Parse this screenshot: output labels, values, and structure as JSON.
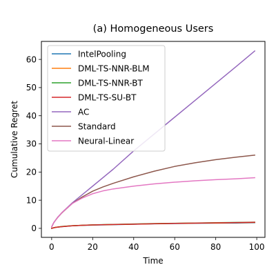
{
  "chart_data": {
    "type": "line",
    "title": "(a) Homogeneous Users",
    "xlabel": "Time",
    "ylabel": "Cumulative Regret",
    "xlim": [
      -5,
      104
    ],
    "ylim": [
      -3.2,
      66.4
    ],
    "xticks": [
      0,
      20,
      40,
      60,
      80,
      100
    ],
    "yticks": [
      0,
      10,
      20,
      30,
      40,
      50,
      60
    ],
    "grid": false,
    "legend_position": "upper-left",
    "series": [
      {
        "name": "IntelPooling",
        "color": "#1f77b4",
        "x": [
          0,
          1,
          2,
          5,
          10,
          15,
          20,
          30,
          40,
          50,
          60,
          70,
          80,
          90,
          99
        ],
        "y": [
          0.0,
          0.2,
          0.35,
          0.6,
          0.9,
          1.05,
          1.15,
          1.3,
          1.45,
          1.6,
          1.7,
          1.8,
          1.85,
          1.9,
          2.0
        ]
      },
      {
        "name": "DML-TS-NNR-BLM",
        "color": "#ff7f0e",
        "x": [
          0,
          1,
          2,
          5,
          10,
          15,
          20,
          30,
          40,
          50,
          60,
          70,
          80,
          90,
          99
        ],
        "y": [
          0.0,
          0.25,
          0.4,
          0.65,
          0.95,
          1.1,
          1.2,
          1.35,
          1.5,
          1.65,
          1.75,
          1.85,
          1.9,
          2.0,
          2.1
        ]
      },
      {
        "name": "DML-TS-NNR-BT",
        "color": "#2ca02c",
        "x": [
          0,
          1,
          2,
          5,
          10,
          15,
          20,
          30,
          40,
          50,
          60,
          70,
          80,
          90,
          99
        ],
        "y": [
          0.0,
          0.2,
          0.35,
          0.65,
          0.95,
          1.1,
          1.25,
          1.4,
          1.55,
          1.7,
          1.8,
          1.9,
          2.0,
          2.1,
          2.2
        ]
      },
      {
        "name": "DML-TS-SU-BT",
        "color": "#d62728",
        "x": [
          0,
          1,
          2,
          5,
          10,
          15,
          20,
          30,
          40,
          50,
          60,
          70,
          80,
          90,
          99
        ],
        "y": [
          0.0,
          0.2,
          0.35,
          0.6,
          0.9,
          1.1,
          1.2,
          1.35,
          1.5,
          1.65,
          1.75,
          1.85,
          1.95,
          2.05,
          2.15
        ]
      },
      {
        "name": "AC",
        "color": "#9467bd",
        "x": [
          0,
          1,
          2,
          3,
          5,
          10,
          15,
          20,
          30,
          40,
          50,
          60,
          70,
          80,
          90,
          99
        ],
        "y": [
          0.5,
          2.0,
          3.0,
          4.0,
          5.6,
          9.0,
          12.0,
          15.0,
          21.0,
          27.5,
          33.5,
          39.5,
          45.5,
          51.5,
          57.5,
          63.0
        ]
      },
      {
        "name": "Standard",
        "color": "#8c564b",
        "x": [
          0,
          1,
          2,
          3,
          5,
          10,
          15,
          20,
          25,
          30,
          40,
          50,
          60,
          70,
          80,
          90,
          99
        ],
        "y": [
          0.5,
          2.0,
          3.0,
          3.9,
          5.5,
          8.8,
          11.2,
          13.2,
          14.7,
          16.0,
          18.3,
          20.3,
          22.0,
          23.3,
          24.4,
          25.3,
          26.0
        ]
      },
      {
        "name": "Neural-Linear",
        "color": "#e377c2",
        "x": [
          0,
          1,
          2,
          3,
          5,
          10,
          15,
          20,
          25,
          30,
          40,
          50,
          60,
          70,
          80,
          90,
          99
        ],
        "y": [
          0.5,
          2.0,
          3.0,
          3.9,
          5.6,
          8.8,
          10.8,
          12.3,
          13.3,
          14.0,
          15.0,
          15.8,
          16.4,
          16.9,
          17.3,
          17.6,
          18.0
        ]
      }
    ]
  }
}
